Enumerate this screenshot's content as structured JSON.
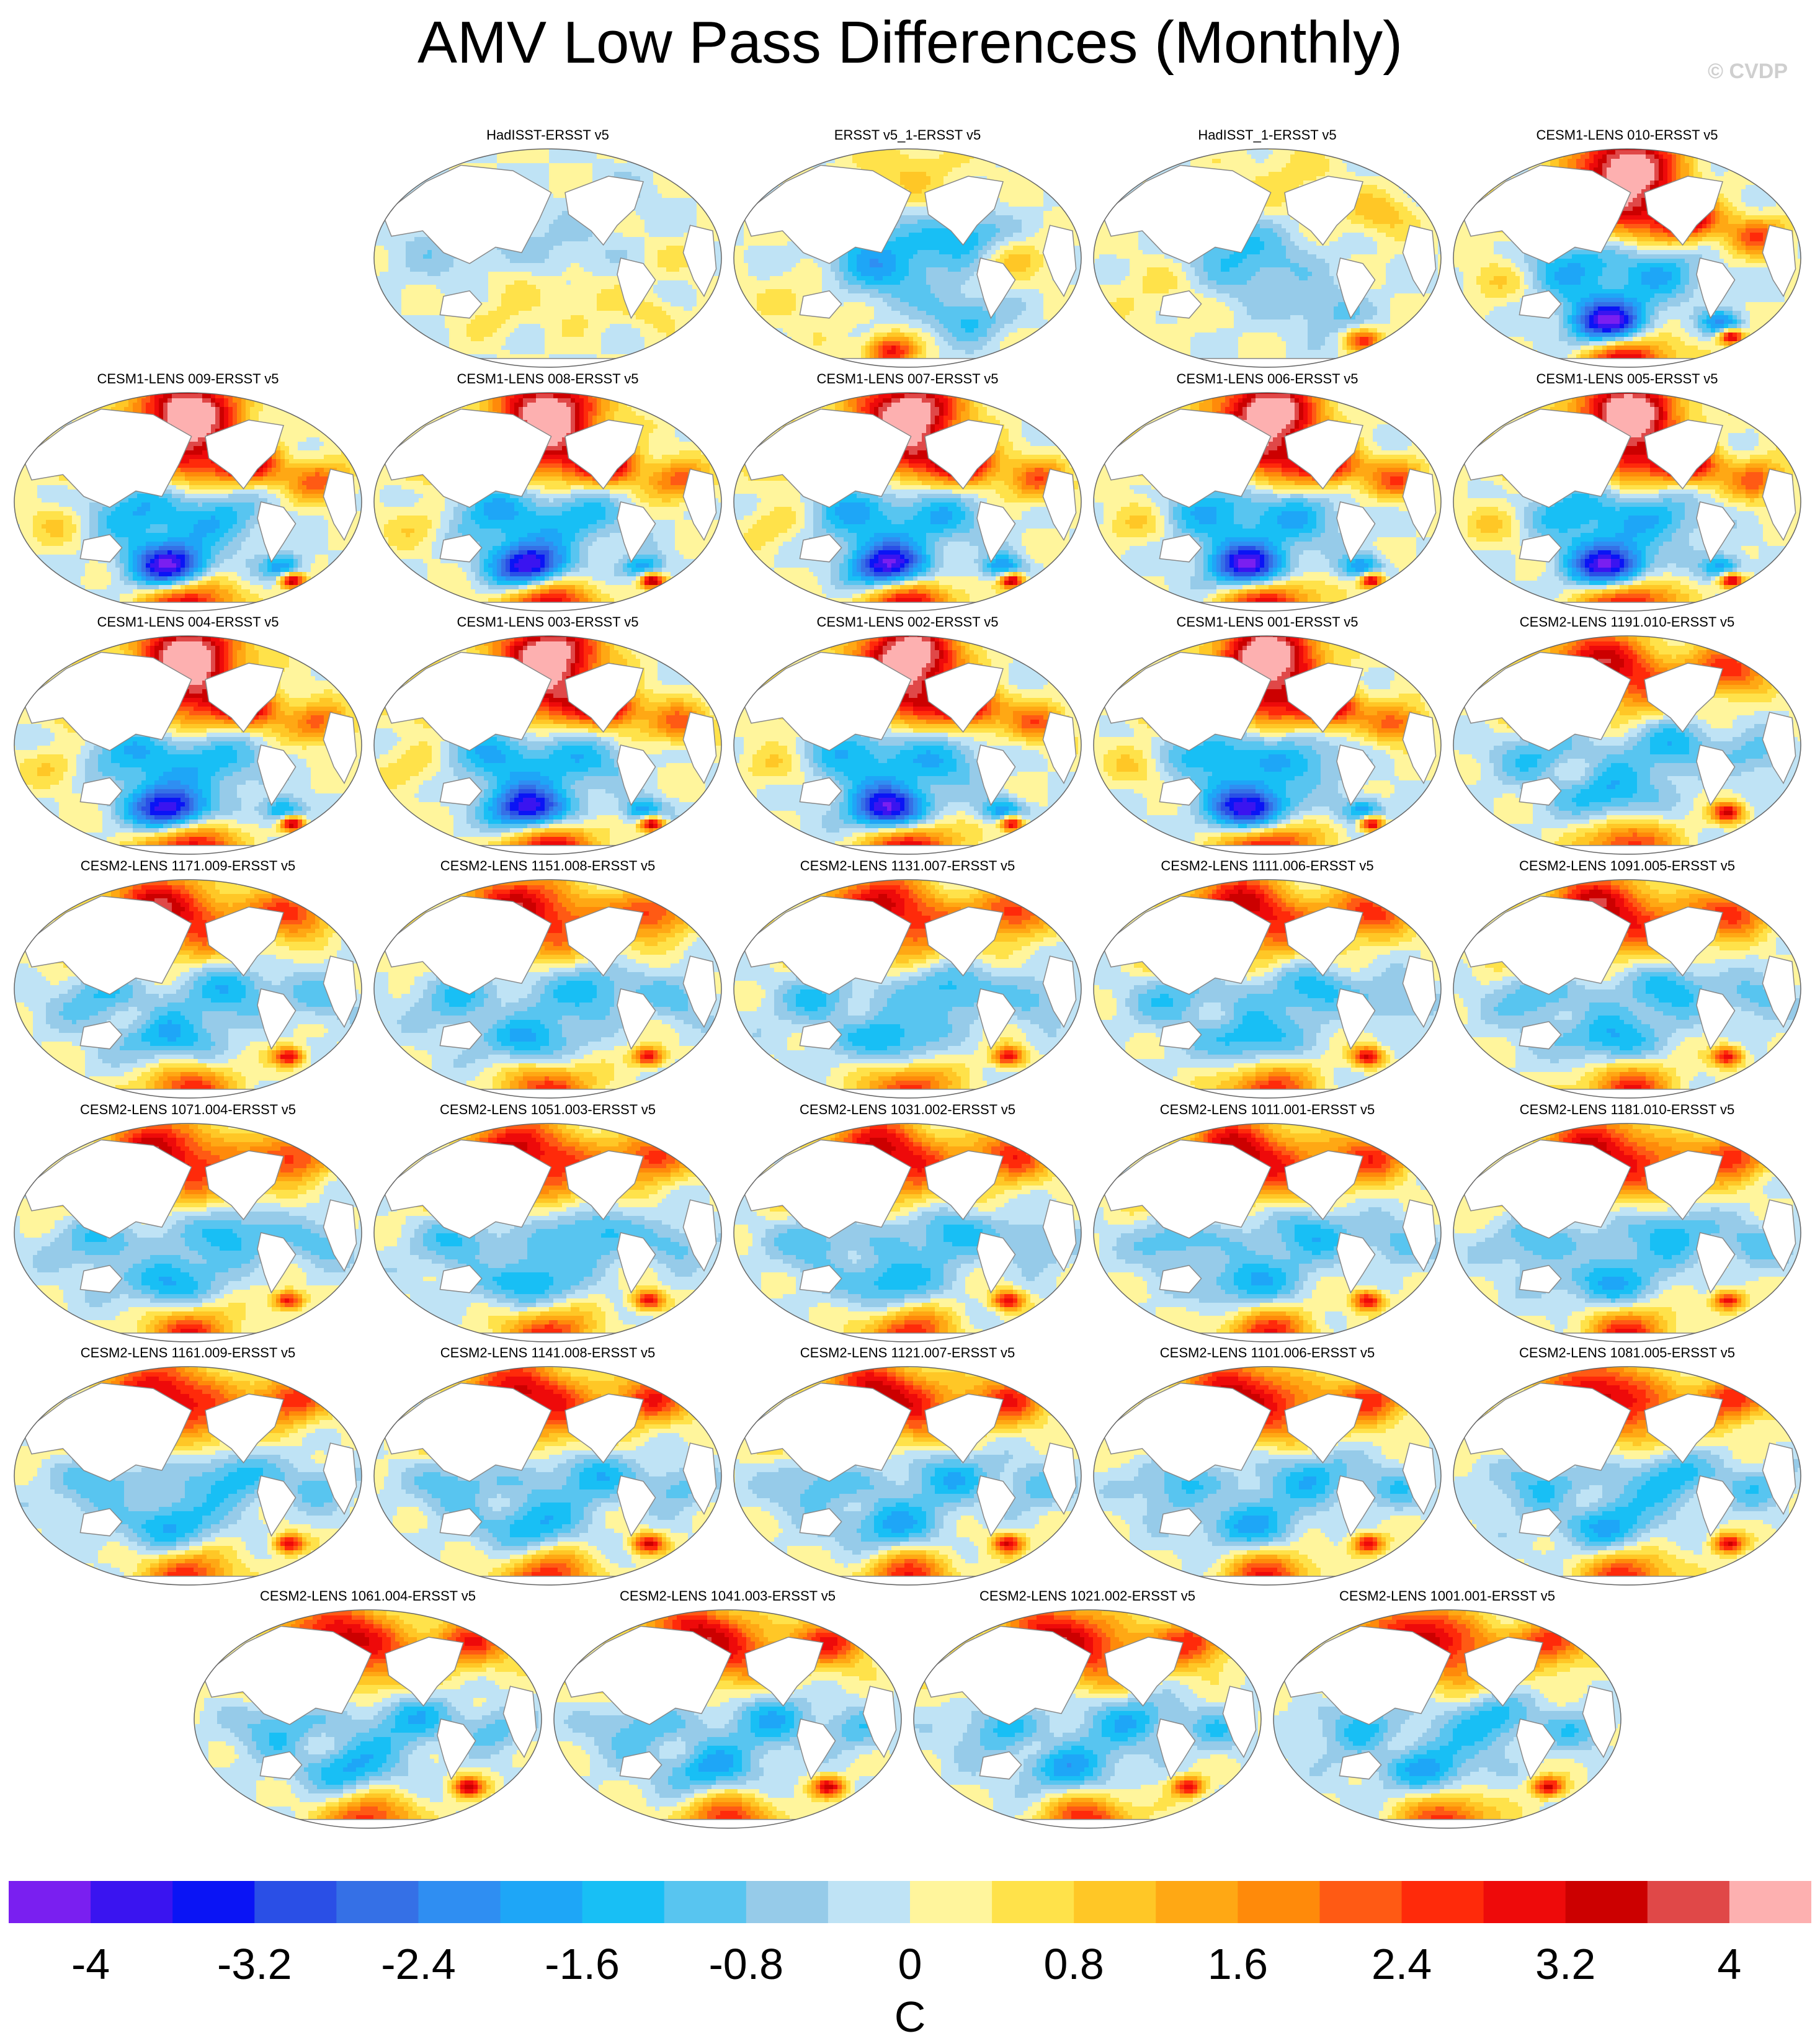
{
  "title": "AMV Low Pass Differences (Monthly)",
  "watermark": "© CVDP",
  "chart_data": {
    "type": "heatmap",
    "description_of_fields": "Global SST difference maps (model/obs minus ERSST v5), Robinson-style projection",
    "units": "C",
    "colorbar": {
      "levels": [
        -4,
        -3.6,
        -3.2,
        -2.8,
        -2.4,
        -2.0,
        -1.6,
        -1.2,
        -0.8,
        -0.4,
        0,
        0.4,
        0.8,
        1.2,
        1.6,
        2.0,
        2.4,
        2.8,
        3.2,
        3.6,
        4
      ],
      "tick_labels": [
        "-4",
        "-3.2",
        "-2.4",
        "-1.6",
        "-0.8",
        "0",
        "0.8",
        "1.6",
        "2.4",
        "3.2",
        "4"
      ],
      "unit_label": "C",
      "colors": [
        "#7a1ff0",
        "#3a14f0",
        "#0a14f5",
        "#2a4fe6",
        "#3570e6",
        "#2f8ef2",
        "#1ea6f7",
        "#18bff5",
        "#58c5f0",
        "#96cbe9",
        "#bfe3f5",
        "#fff59c",
        "#ffe24a",
        "#ffc726",
        "#ffa814",
        "#ff8a0a",
        "#ff5a14",
        "#ff2a0a",
        "#ee0a0a",
        "#cc0000",
        "#e04848",
        "#fdb0b0"
      ]
    },
    "panels": [
      {
        "label": "HadISST-ERSST v5",
        "pattern": "obs_weak"
      },
      {
        "label": "ERSST v5_1-ERSST v5",
        "pattern": "obs_mid"
      },
      {
        "label": "HadISST_1-ERSST v5",
        "pattern": "obs_mid2"
      },
      {
        "label": "CESM1-LENS 010-ERSST v5",
        "pattern": "cesm1"
      },
      {
        "label": "CESM1-LENS 009-ERSST v5",
        "pattern": "cesm1"
      },
      {
        "label": "CESM1-LENS 008-ERSST v5",
        "pattern": "cesm1"
      },
      {
        "label": "CESM1-LENS 007-ERSST v5",
        "pattern": "cesm1"
      },
      {
        "label": "CESM1-LENS 006-ERSST v5",
        "pattern": "cesm1"
      },
      {
        "label": "CESM1-LENS 005-ERSST v5",
        "pattern": "cesm1"
      },
      {
        "label": "CESM1-LENS 004-ERSST v5",
        "pattern": "cesm1"
      },
      {
        "label": "CESM1-LENS 003-ERSST v5",
        "pattern": "cesm1"
      },
      {
        "label": "CESM1-LENS 002-ERSST v5",
        "pattern": "cesm1"
      },
      {
        "label": "CESM1-LENS 001-ERSST v5",
        "pattern": "cesm1"
      },
      {
        "label": "CESM2-LENS 1191.010-ERSST v5",
        "pattern": "cesm2"
      },
      {
        "label": "CESM2-LENS 1171.009-ERSST v5",
        "pattern": "cesm2"
      },
      {
        "label": "CESM2-LENS 1151.008-ERSST v5",
        "pattern": "cesm2"
      },
      {
        "label": "CESM2-LENS 1131.007-ERSST v5",
        "pattern": "cesm2"
      },
      {
        "label": "CESM2-LENS 1111.006-ERSST v5",
        "pattern": "cesm2"
      },
      {
        "label": "CESM2-LENS 1091.005-ERSST v5",
        "pattern": "cesm2"
      },
      {
        "label": "CESM2-LENS 1071.004-ERSST v5",
        "pattern": "cesm2"
      },
      {
        "label": "CESM2-LENS 1051.003-ERSST v5",
        "pattern": "cesm2"
      },
      {
        "label": "CESM2-LENS 1031.002-ERSST v5",
        "pattern": "cesm2"
      },
      {
        "label": "CESM2-LENS 1011.001-ERSST v5",
        "pattern": "cesm2"
      },
      {
        "label": "CESM2-LENS 1181.010-ERSST v5",
        "pattern": "cesm2"
      },
      {
        "label": "CESM2-LENS 1161.009-ERSST v5",
        "pattern": "cesm2"
      },
      {
        "label": "CESM2-LENS 1141.008-ERSST v5",
        "pattern": "cesm2"
      },
      {
        "label": "CESM2-LENS 1121.007-ERSST v5",
        "pattern": "cesm2"
      },
      {
        "label": "CESM2-LENS 1101.006-ERSST v5",
        "pattern": "cesm2"
      },
      {
        "label": "CESM2-LENS 1081.005-ERSST v5",
        "pattern": "cesm2"
      },
      {
        "label": "CESM2-LENS 1061.004-ERSST v5",
        "pattern": "cesm2"
      },
      {
        "label": "CESM2-LENS 1041.003-ERSST v5",
        "pattern": "cesm2"
      },
      {
        "label": "CESM2-LENS 1021.002-ERSST v5",
        "pattern": "cesm2"
      },
      {
        "label": "CESM2-LENS 1001.001-ERSST v5",
        "pattern": "cesm2"
      }
    ]
  }
}
